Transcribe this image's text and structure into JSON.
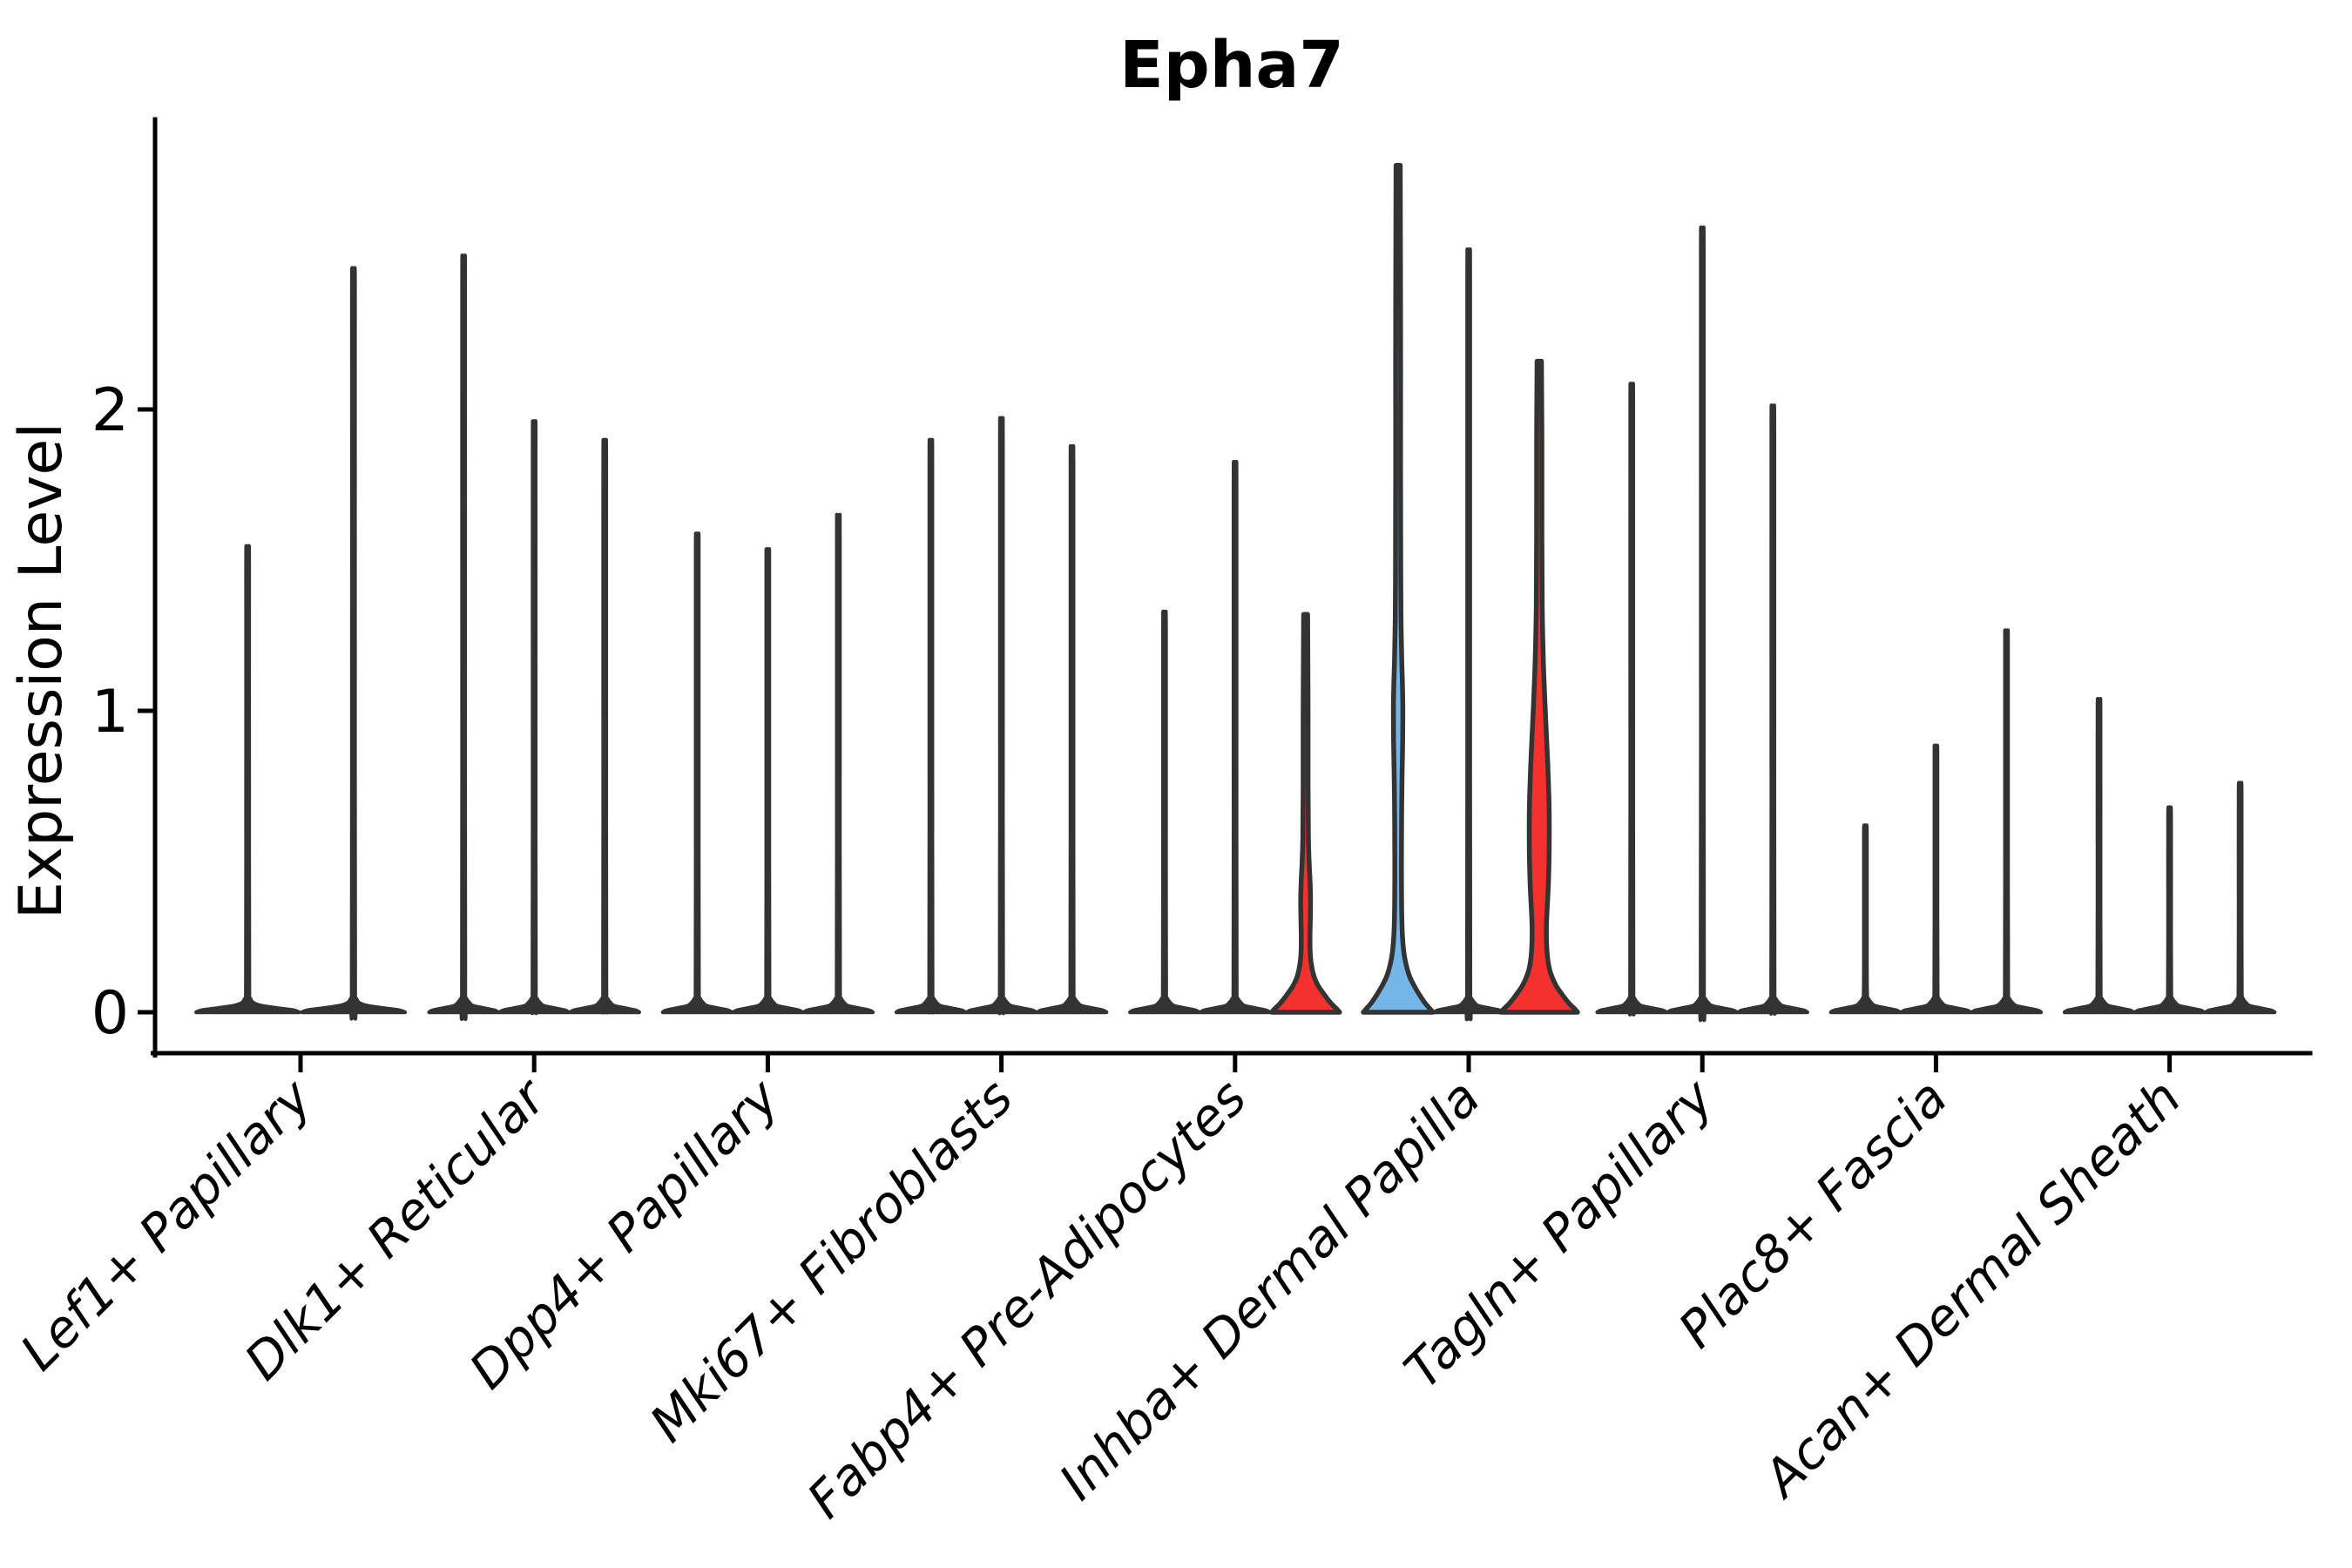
{
  "chart_data": {
    "type": "violin",
    "title": "Epha7",
    "ylabel": "Expression Level",
    "xlabel": "",
    "yticks": [
      0,
      1,
      2
    ],
    "ylim": [
      -0.14,
      2.95
    ],
    "grid": false,
    "legend_position": "none",
    "palette": {
      "highlight_red": "#f5312e",
      "highlight_blue": "#74b6e8",
      "violin_outline": "#333333",
      "axis_color": "#000000",
      "background": "#ffffff"
    },
    "categories": [
      "Lef1+ Papillary",
      "Dlk1+ Reticular",
      "Dpp4+ Papillary",
      "Mki67+ Fibroblasts",
      "Fabp4+ Pre-Adipocytes",
      "Inhba+ Dermal Papilla",
      "Tagln+ Papillary",
      "Plac8+ Fascia",
      "Acan+ Dermal Sheath"
    ],
    "groups": [
      {
        "label": "Lef1+ Papillary",
        "violins": [
          {
            "max": 1.52,
            "color": null
          },
          {
            "max": 2.41,
            "color": null
          }
        ]
      },
      {
        "label": "Dlk1+ Reticular",
        "violins": [
          {
            "max": 2.45,
            "color": null
          },
          {
            "max": 1.92,
            "color": null
          },
          {
            "max": 1.86,
            "color": null
          }
        ]
      },
      {
        "label": "Dpp4+ Papillary",
        "violins": [
          {
            "max": 1.56,
            "color": null
          },
          {
            "max": 1.51,
            "color": null
          },
          {
            "max": 1.62,
            "color": null
          }
        ]
      },
      {
        "label": "Mki67+ Fibroblasts",
        "violins": [
          {
            "max": 1.86,
            "color": null
          },
          {
            "max": 1.93,
            "color": null
          },
          {
            "max": 1.84,
            "color": null
          }
        ]
      },
      {
        "label": "Fabp4+ Pre-Adipocytes",
        "violins": [
          {
            "max": 1.31,
            "color": null
          },
          {
            "max": 1.79,
            "color": null
          },
          {
            "max": 1.32,
            "color": "red",
            "bulge": {
              "from": 0.23,
              "to": 0.53,
              "peak": 0.4
            },
            "profile": [
              [
                0,
                39
              ],
              [
                0.01,
                36
              ],
              [
                0.03,
                29
              ],
              [
                0.06,
                21
              ],
              [
                0.09,
                14
              ],
              [
                0.12,
                9.5
              ],
              [
                0.16,
                6.5
              ],
              [
                0.2,
                5.2
              ],
              [
                0.25,
                5.0
              ],
              [
                0.31,
                5.4
              ],
              [
                0.38,
                5.6
              ],
              [
                0.44,
                5.0
              ],
              [
                0.5,
                4.0
              ],
              [
                0.58,
                3.2
              ],
              [
                0.75,
                2.8
              ],
              [
                1.0,
                2.8
              ],
              [
                1.32,
                2.3
              ]
            ]
          }
        ]
      },
      {
        "label": "Inhba+ Dermal Papilla",
        "violins": [
          {
            "max": 2.81,
            "color": "blue",
            "bulge": {
              "from": 0.86,
              "to": 1.14,
              "peak": 1.0
            },
            "profile": [
              [
                0,
                40
              ],
              [
                0.01,
                37
              ],
              [
                0.03,
                31
              ],
              [
                0.06,
                24
              ],
              [
                0.09,
                18
              ],
              [
                0.12,
                13
              ],
              [
                0.16,
                9
              ],
              [
                0.2,
                6.5
              ],
              [
                0.26,
                4.8
              ],
              [
                0.35,
                4.0
              ],
              [
                0.5,
                3.8
              ],
              [
                0.65,
                4.0
              ],
              [
                0.8,
                4.6
              ],
              [
                0.9,
                5.2
              ],
              [
                1.0,
                5.4
              ],
              [
                1.08,
                5.0
              ],
              [
                1.16,
                4.2
              ],
              [
                1.28,
                3.4
              ],
              [
                1.45,
                3.0
              ],
              [
                1.8,
                2.8
              ],
              [
                2.3,
                2.8
              ],
              [
                2.81,
                2.4
              ]
            ]
          },
          {
            "max": 2.47,
            "color": null
          },
          {
            "max": 2.16,
            "color": "red",
            "bulge": {
              "from": 0.21,
              "to": 1.27,
              "peak": 0.62
            },
            "profile": [
              [
                0,
                44
              ],
              [
                0.01,
                41
              ],
              [
                0.03,
                34
              ],
              [
                0.06,
                26
              ],
              [
                0.09,
                19
              ],
              [
                0.13,
                13
              ],
              [
                0.17,
                10
              ],
              [
                0.22,
                8.5
              ],
              [
                0.28,
                8.2
              ],
              [
                0.34,
                9.0
              ],
              [
                0.42,
                10.4
              ],
              [
                0.52,
                11.3
              ],
              [
                0.62,
                11.5
              ],
              [
                0.72,
                11.0
              ],
              [
                0.82,
                9.8
              ],
              [
                0.92,
                8.2
              ],
              [
                1.02,
                6.6
              ],
              [
                1.12,
                5.2
              ],
              [
                1.22,
                4.2
              ],
              [
                1.35,
                3.4
              ],
              [
                1.6,
                3.0
              ],
              [
                1.9,
                3.0
              ],
              [
                2.16,
                2.5
              ]
            ]
          }
        ]
      },
      {
        "label": "Tagln+ Papillary",
        "violins": [
          {
            "max": 2.04,
            "color": null
          },
          {
            "max": 2.54,
            "color": null
          },
          {
            "max": 1.97,
            "color": null
          }
        ]
      },
      {
        "label": "Plac8+ Fascia",
        "violins": [
          {
            "max": 0.62,
            "color": null
          },
          {
            "max": 0.88,
            "color": null
          },
          {
            "max": 1.25,
            "color": null
          }
        ]
      },
      {
        "label": "Acan+ Dermal Sheath",
        "violins": [
          {
            "max": 1.03,
            "color": null
          },
          {
            "max": 0.68,
            "color": null
          },
          {
            "max": 0.76,
            "color": null
          }
        ]
      }
    ]
  }
}
